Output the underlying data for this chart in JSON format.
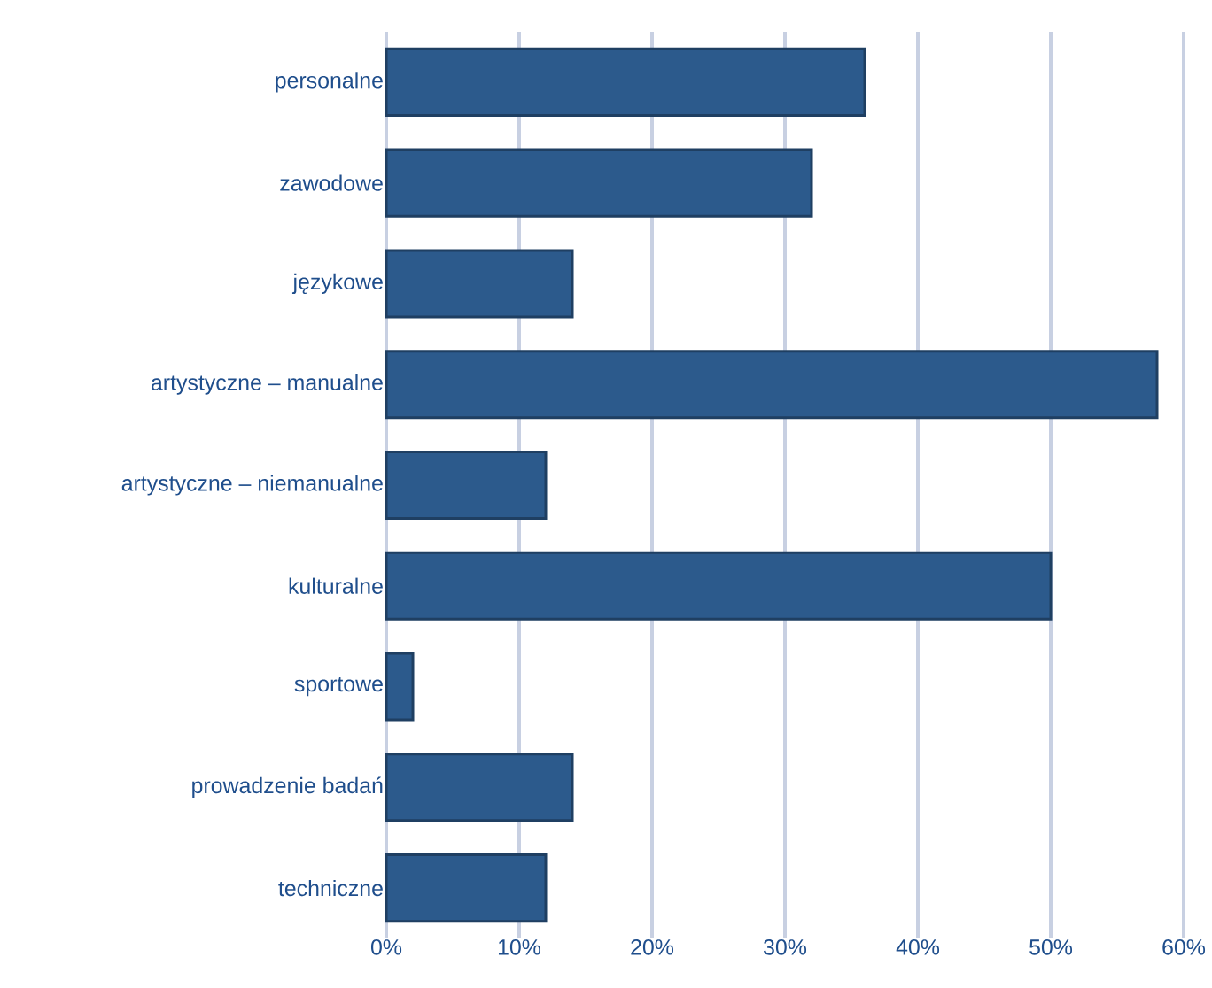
{
  "chart_data": {
    "type": "bar",
    "orientation": "horizontal",
    "categories": [
      "personalne",
      "zawodowe",
      "językowe",
      "artystyczne – manualne",
      "artystyczne – niemanualne",
      "kulturalne",
      "sportowe",
      "prowadzenie badań",
      "techniczne"
    ],
    "values": [
      36,
      32,
      14,
      58,
      12,
      50,
      2,
      14,
      12
    ],
    "color": "#2c5a8c",
    "xlim": [
      0,
      60
    ],
    "xticks": [
      {
        "value": 0,
        "label": "0%"
      },
      {
        "value": 10,
        "label": "10%"
      },
      {
        "value": 20,
        "label": "20%"
      },
      {
        "value": 30,
        "label": "30%"
      },
      {
        "value": 40,
        "label": "40%"
      },
      {
        "value": 50,
        "label": "50%"
      },
      {
        "value": 60,
        "label": "60%"
      }
    ],
    "grid": "x"
  }
}
